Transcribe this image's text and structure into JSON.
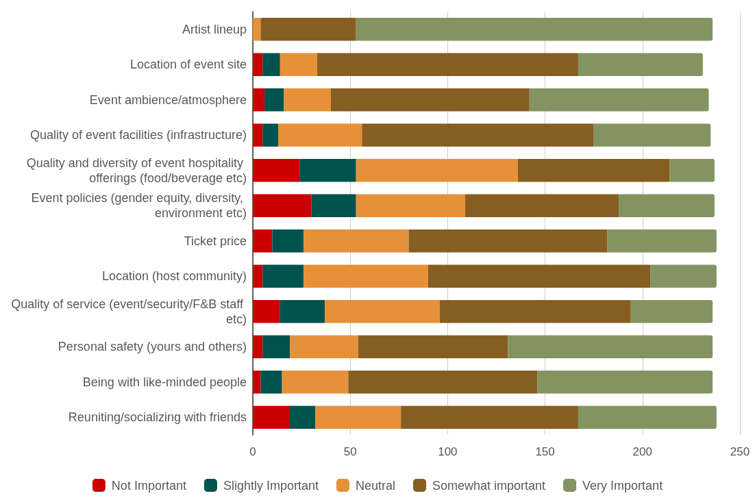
{
  "chart_data": {
    "type": "bar",
    "orientation": "horizontal",
    "stacked": true,
    "categories": [
      "Artist lineup",
      "Location of event site",
      "Event ambience/atmosphere",
      "Quality of event facilities (infrastructure)",
      "Quality and diversity of event hospitality offerings (food/beverage etc)",
      "Event policies (gender equity, diversity, environment etc)",
      "Ticket price",
      "Location (host community)",
      "Quality of service (event/security/F&B staff etc)",
      "Personal safety (yours and others)",
      "Being with like-minded people",
      "Reuniting/socializing with friends"
    ],
    "series": [
      {
        "name": "Not Important",
        "color": "#cc0000",
        "values": [
          0,
          5,
          6,
          5,
          24,
          30,
          10,
          5,
          14,
          5,
          4,
          19
        ]
      },
      {
        "name": "Slightly Important",
        "color": "#00524f",
        "values": [
          0,
          9,
          10,
          8,
          29,
          23,
          16,
          21,
          23,
          14,
          11,
          13
        ]
      },
      {
        "name": "Neutral",
        "color": "#e69138",
        "values": [
          4,
          19,
          24,
          43,
          83,
          56,
          54,
          64,
          59,
          35,
          34,
          44
        ]
      },
      {
        "name": "Somewhat important",
        "color": "#875e22",
        "values": [
          49,
          134,
          102,
          119,
          78,
          79,
          102,
          114,
          98,
          77,
          97,
          91
        ]
      },
      {
        "name": "Very Important",
        "color": "#839462",
        "values": [
          183,
          64,
          92,
          60,
          23,
          49,
          56,
          34,
          42,
          105,
          90,
          71
        ]
      }
    ],
    "xlim": [
      0,
      250
    ],
    "xticks": [
      0,
      50,
      100,
      150,
      200,
      250
    ],
    "grid": "x",
    "legend": "bottom"
  }
}
